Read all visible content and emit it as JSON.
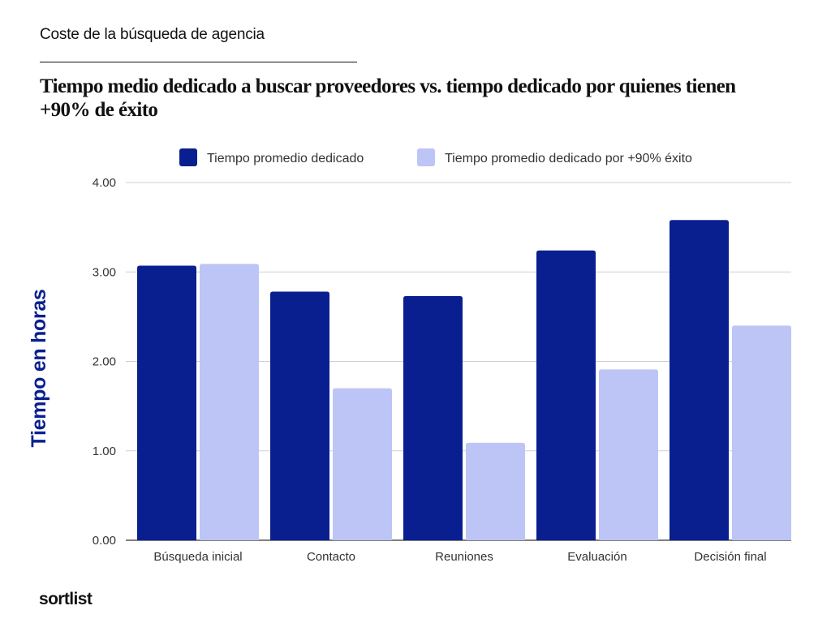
{
  "kicker": "Coste de la búsqueda de agencia",
  "headline": "Tiempo medio dedicado a buscar proveedores vs. tiempo dedicado por quienes tienen +90% de éxito",
  "logo": "sortlist",
  "chart_data": {
    "type": "bar",
    "categories": [
      "Búsqueda inicial",
      "Contacto",
      "Reuniones",
      "Evaluación",
      "Decisión final"
    ],
    "series": [
      {
        "name": "Tiempo promedio dedicado",
        "color": "#0a1f8f",
        "values": [
          3.07,
          2.78,
          2.73,
          3.24,
          3.58
        ]
      },
      {
        "name": "Tiempo promedio dedicado por +90% éxito",
        "color": "#bcc5f5",
        "values": [
          3.09,
          1.7,
          1.09,
          1.91,
          2.4
        ]
      }
    ],
    "ylabel": "Tiempo en horas",
    "xlabel": "",
    "ylim": [
      0,
      4
    ],
    "yticks": [
      0,
      1,
      2,
      3,
      4
    ],
    "ytick_labels": [
      "0.00",
      "1.00",
      "2.00",
      "3.00",
      "4.00"
    ],
    "grid": true,
    "legend_position": "top"
  }
}
